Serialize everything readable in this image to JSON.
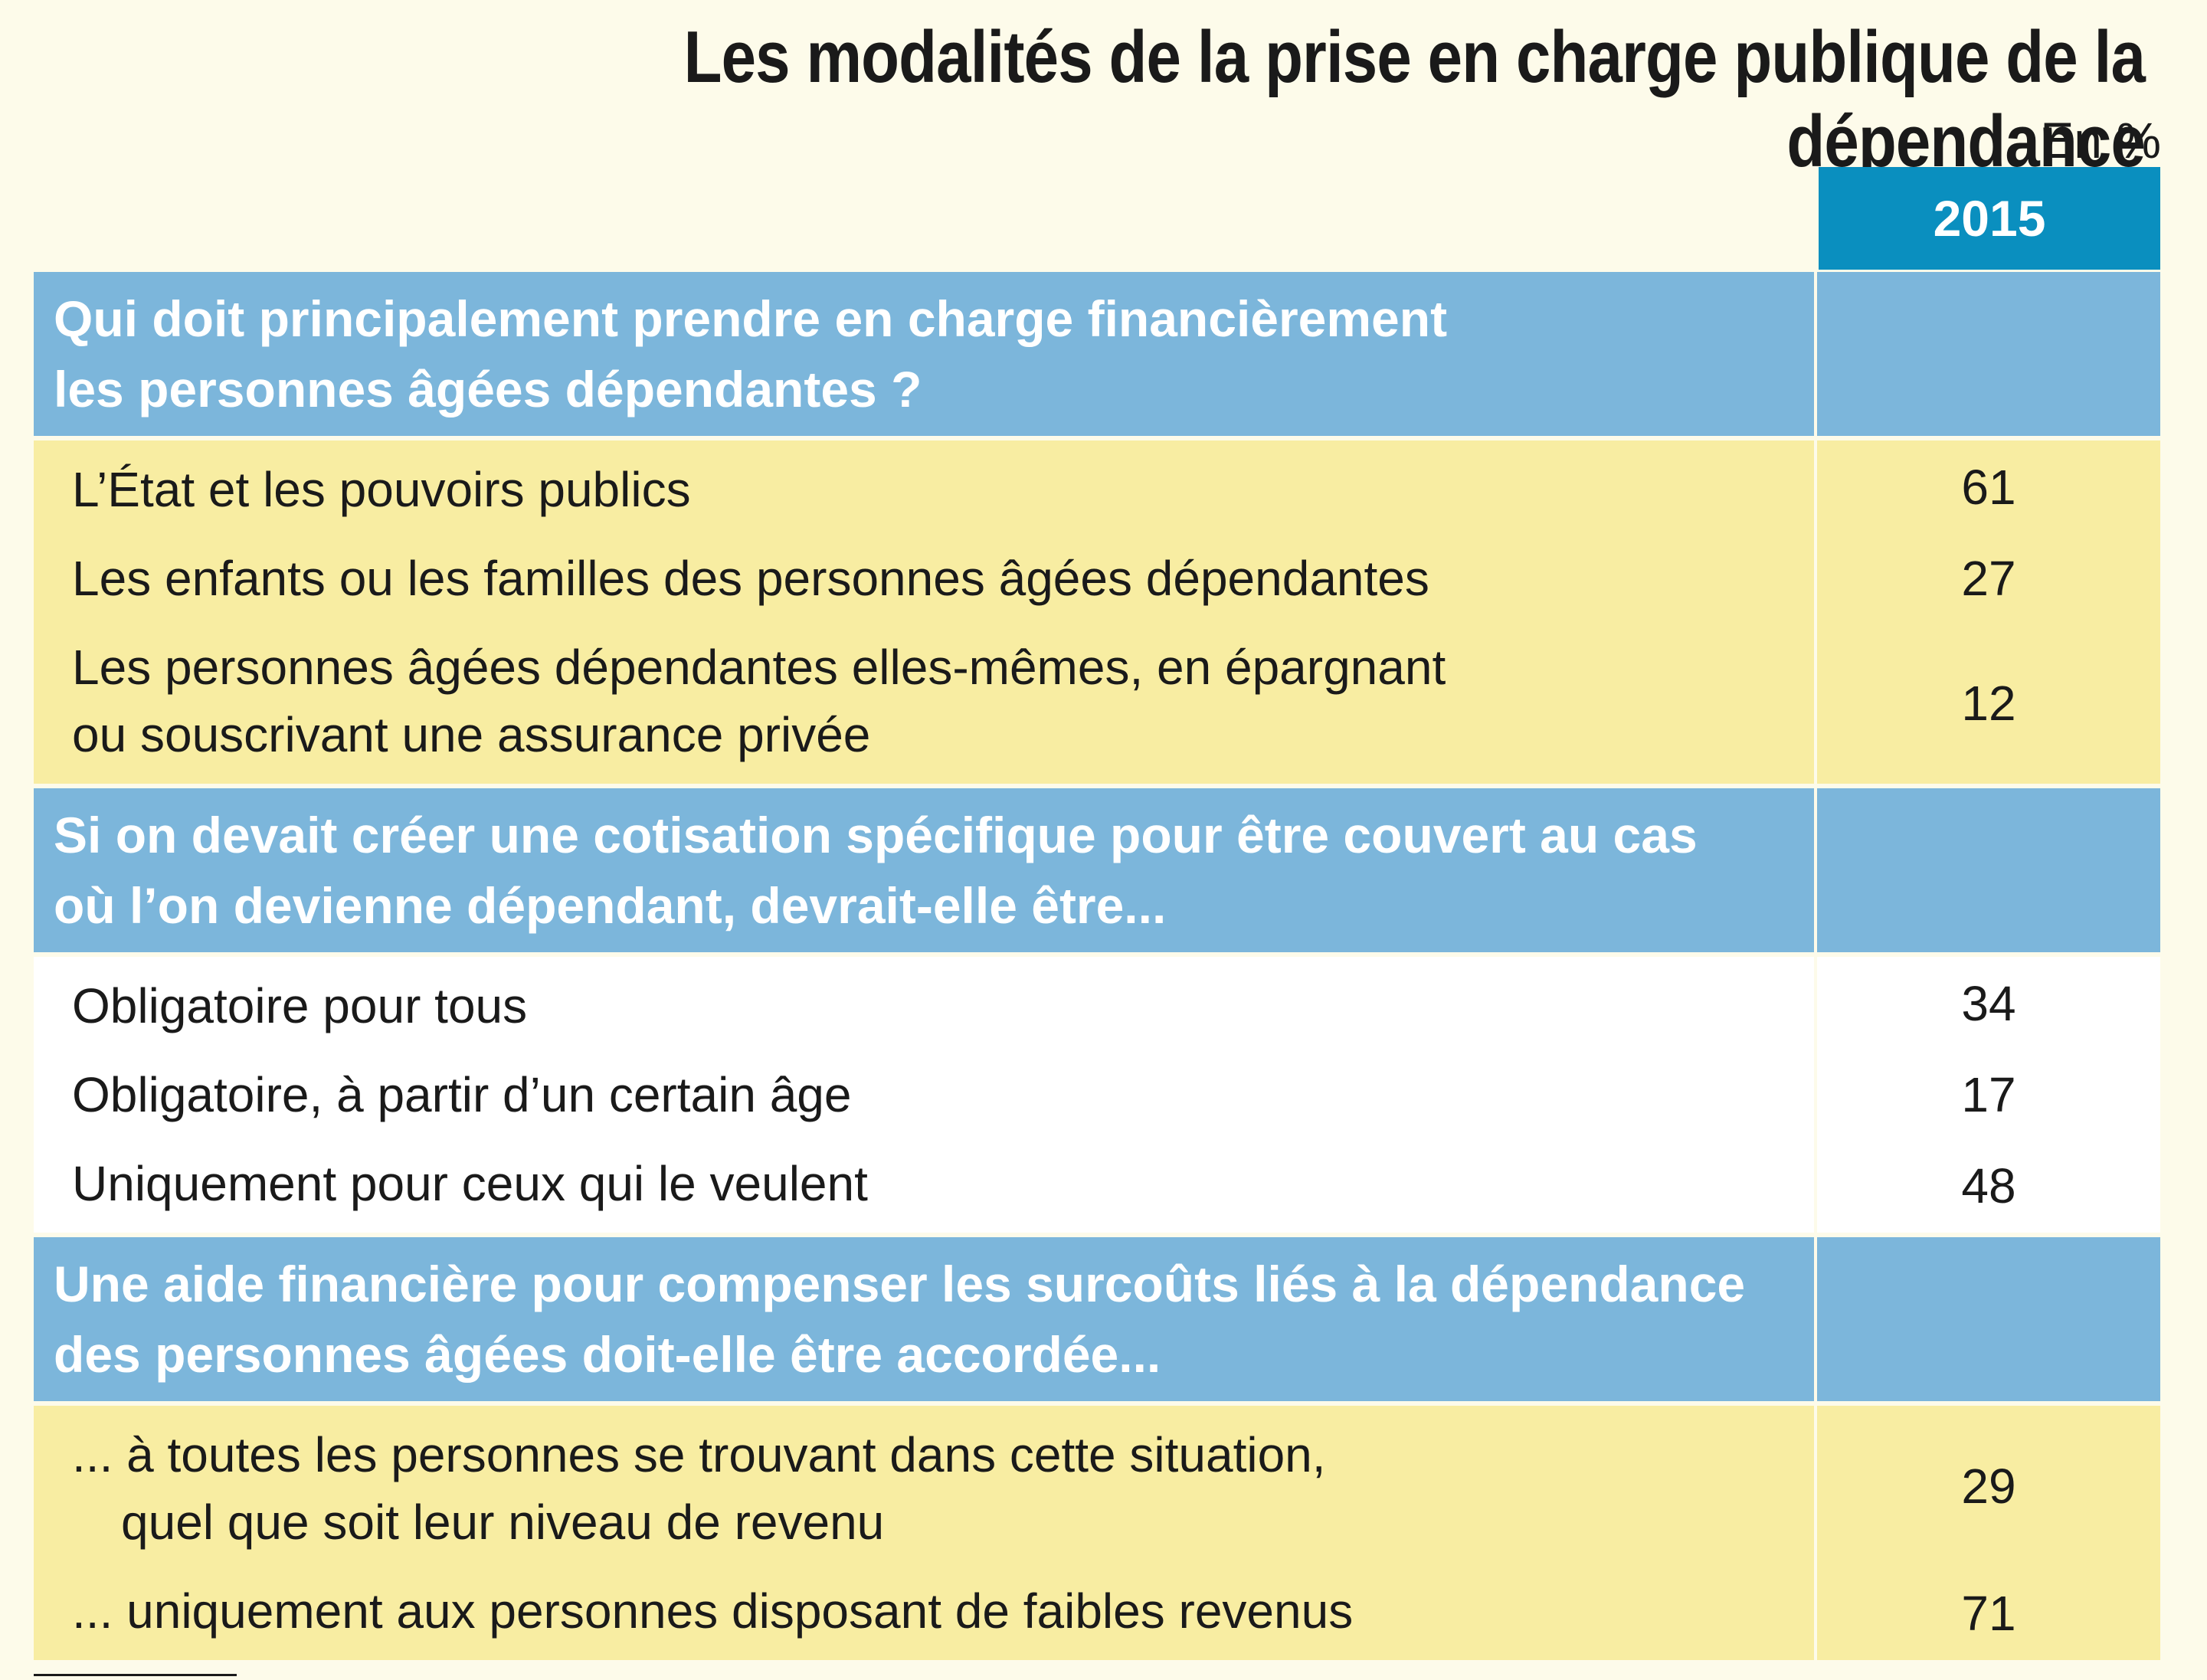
{
  "title": "Les modalités de la prise en charge publique de la dépendance",
  "unit": "En %",
  "column_header": "2015",
  "chart_data": {
    "type": "table",
    "title": "Les modalités de la prise en charge publique de la dépendance",
    "unit": "En %",
    "columns": [
      "2015"
    ],
    "sections": [
      {
        "question": [
          "Qui doit principalement prendre en charge financièrement",
          "les personnes âgées dépendantes ?"
        ],
        "rows": [
          {
            "label": [
              "L’État et les pouvoirs publics"
            ],
            "value": "61"
          },
          {
            "label": [
              "Les enfants ou les familles des personnes âgées dépendantes"
            ],
            "value": "27"
          },
          {
            "label": [
              "Les personnes âgées dépendantes elles-mêmes, en épargnant",
              "ou souscrivant une assurance privée"
            ],
            "value": "12"
          }
        ]
      },
      {
        "question": [
          "Si on devait créer une cotisation spécifique pour être couvert au cas",
          "où l’on devienne dépendant, devrait-elle être..."
        ],
        "rows": [
          {
            "label": [
              "Obligatoire pour tous"
            ],
            "value": "34"
          },
          {
            "label": [
              "Obligatoire, à partir d’un certain âge"
            ],
            "value": "17"
          },
          {
            "label": [
              "Uniquement pour ceux qui le veulent"
            ],
            "value": "48"
          }
        ]
      },
      {
        "question": [
          "Une aide financière pour compenser les surcoûts liés à la dépendance",
          "des personnes âgées doit-elle être accordée..."
        ],
        "rows": [
          {
            "label": [
              "... à toutes les personnes se trouvant dans cette situation,",
              "quel que soit leur niveau de revenu"
            ],
            "value": "29"
          },
          {
            "label": [
              "... uniquement aux personnes disposant de faibles revenus"
            ],
            "value": "71"
          }
        ]
      }
    ]
  }
}
